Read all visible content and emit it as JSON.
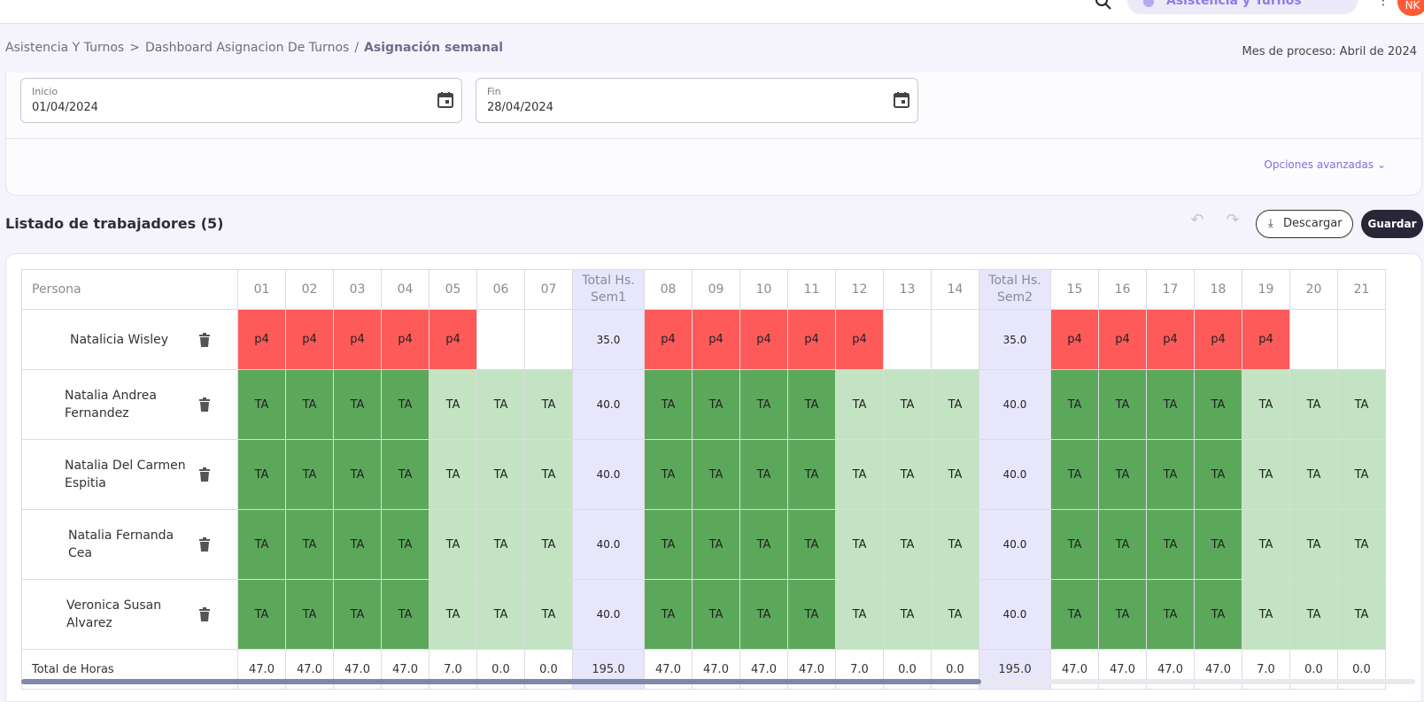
{
  "topbar": {
    "app_name": "Asistencia y Turnos",
    "avatar_initials": "NK",
    "colors": {
      "accent": "#8a7ee8",
      "avatar": "#ff5a36"
    }
  },
  "breadcrumb": {
    "items": [
      "Asistencia Y Turnos",
      "Dashboard Asignacion De Turnos"
    ],
    "separators": [
      ">",
      "/"
    ],
    "current": "Asignación semanal"
  },
  "process_month": "Mes de proceso: Abril de 2024",
  "filters": {
    "start": {
      "label": "Inicio",
      "value": "01/04/2024"
    },
    "end": {
      "label": "Fin",
      "value": "28/04/2024"
    },
    "advanced_label": "Opciones avanzadas"
  },
  "workers": {
    "title": "Listado de trabajadores (5)",
    "download_label": "Descargar",
    "save_label": "Guardar"
  },
  "table": {
    "persona_header": "Persona",
    "week1_days": [
      "01",
      "02",
      "03",
      "04",
      "05",
      "06",
      "07"
    ],
    "week1_total_header": [
      "Total Hs.",
      "Sem1"
    ],
    "week2_days": [
      "08",
      "09",
      "10",
      "11",
      "12",
      "13",
      "14"
    ],
    "week2_total_header": [
      "Total Hs.",
      "Sem2"
    ],
    "week3_days": [
      "15",
      "16",
      "17",
      "18",
      "19",
      "20",
      "21"
    ],
    "rows": [
      {
        "name": "Natalicia Wisley",
        "w1": [
          "p4",
          "p4",
          "p4",
          "p4",
          "p4",
          "",
          ""
        ],
        "t1": "35.0",
        "w2": [
          "p4",
          "p4",
          "p4",
          "p4",
          "p4",
          "",
          ""
        ],
        "t2": "35.0",
        "w3": [
          "p4",
          "p4",
          "p4",
          "p4",
          "p4",
          "",
          ""
        ]
      },
      {
        "name": "Natalia Andrea Fernandez",
        "w1": [
          "TA",
          "TA",
          "TA",
          "TA",
          "TA",
          "TA",
          "TA"
        ],
        "t1": "40.0",
        "w2": [
          "TA",
          "TA",
          "TA",
          "TA",
          "TA",
          "TA",
          "TA"
        ],
        "t2": "40.0",
        "w3": [
          "TA",
          "TA",
          "TA",
          "TA",
          "TA",
          "TA",
          "TA"
        ]
      },
      {
        "name": "Natalia Del Carmen Espitia",
        "w1": [
          "TA",
          "TA",
          "TA",
          "TA",
          "TA",
          "TA",
          "TA"
        ],
        "t1": "40.0",
        "w2": [
          "TA",
          "TA",
          "TA",
          "TA",
          "TA",
          "TA",
          "TA"
        ],
        "t2": "40.0",
        "w3": [
          "TA",
          "TA",
          "TA",
          "TA",
          "TA",
          "TA",
          "TA"
        ]
      },
      {
        "name": "Natalia Fernanda Cea",
        "w1": [
          "TA",
          "TA",
          "TA",
          "TA",
          "TA",
          "TA",
          "TA"
        ],
        "t1": "40.0",
        "w2": [
          "TA",
          "TA",
          "TA",
          "TA",
          "TA",
          "TA",
          "TA"
        ],
        "t2": "40.0",
        "w3": [
          "TA",
          "TA",
          "TA",
          "TA",
          "TA",
          "TA",
          "TA"
        ]
      },
      {
        "name": "Veronica Susan Alvarez",
        "w1": [
          "TA",
          "TA",
          "TA",
          "TA",
          "TA",
          "TA",
          "TA"
        ],
        "t1": "40.0",
        "w2": [
          "TA",
          "TA",
          "TA",
          "TA",
          "TA",
          "TA",
          "TA"
        ],
        "t2": "40.0",
        "w3": [
          "TA",
          "TA",
          "TA",
          "TA",
          "TA",
          "TA",
          "TA"
        ]
      }
    ],
    "totals": {
      "label": "Total de Horas",
      "w1": [
        "47.0",
        "47.0",
        "47.0",
        "47.0",
        "7.0",
        "0.0",
        "0.0"
      ],
      "t1": "195.0",
      "w2": [
        "47.0",
        "47.0",
        "47.0",
        "47.0",
        "7.0",
        "0.0",
        "0.0"
      ],
      "t2": "195.0",
      "w3": [
        "47.0",
        "47.0",
        "47.0",
        "47.0",
        "7.0",
        "0.0",
        "0.0"
      ]
    },
    "colors": {
      "p4": "#ff5a5a",
      "ta_weekday": "#5ba85b",
      "ta_weekend": "#c3e3c3",
      "total_column": "#e8e6fb"
    }
  }
}
